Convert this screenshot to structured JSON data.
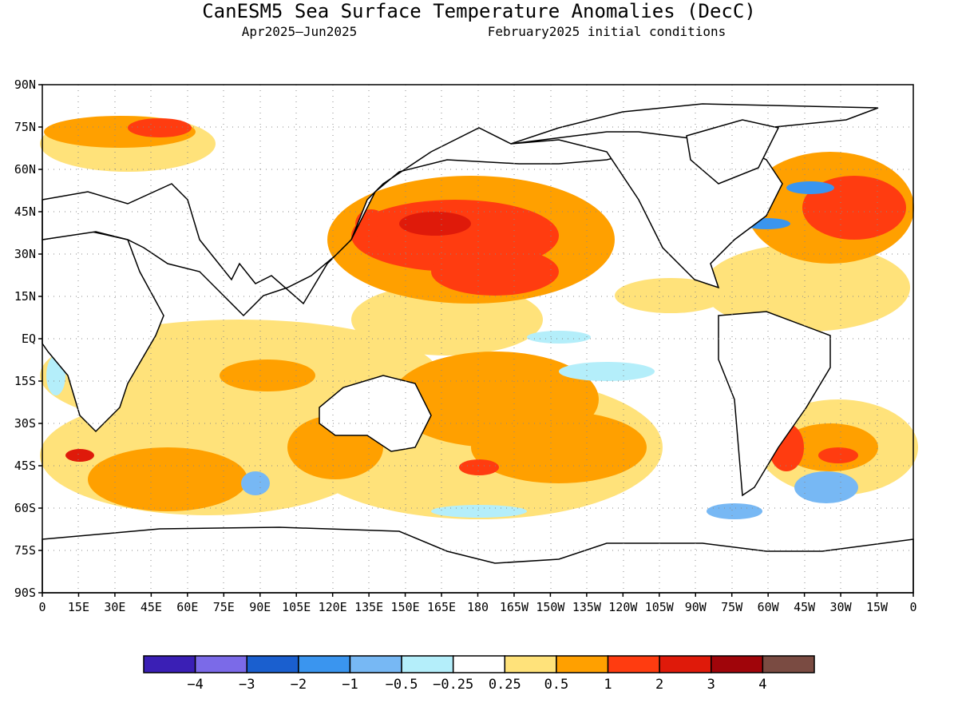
{
  "title": "CanESM5 Sea Surface Temperature Anomalies (DecC)",
  "period": "Apr2025–Jun2025",
  "init": "February2025 initial conditions",
  "lat_labels": [
    "90N",
    "75N",
    "60N",
    "45N",
    "30N",
    "15N",
    "EQ",
    "15S",
    "30S",
    "45S",
    "60S",
    "75S",
    "90S"
  ],
  "lon_labels": [
    "0",
    "15E",
    "30E",
    "45E",
    "60E",
    "75E",
    "90E",
    "105E",
    "120E",
    "135E",
    "150E",
    "165E",
    "180",
    "165W",
    "150W",
    "135W",
    "120W",
    "105W",
    "90W",
    "75W",
    "60W",
    "45W",
    "30W",
    "15W",
    "0"
  ],
  "colorbar": {
    "colors": [
      "#3a1fb5",
      "#7b6ae8",
      "#1a5fcf",
      "#3a95ef",
      "#77b8f4",
      "#b4eefa",
      "#ffffff",
      "#ffe27a",
      "#ffa000",
      "#ff3c10",
      "#df1a0a",
      "#a0050a",
      "#7a4b42"
    ],
    "labels": [
      "−4",
      "−3",
      "−2",
      "−1",
      "−0.5",
      "−0.25",
      "0.25",
      "0.5",
      "1",
      "2",
      "3",
      "4"
    ]
  },
  "chart_data": {
    "type": "heatmap",
    "title": "CanESM5 Sea Surface Temperature Anomalies (DecC)",
    "subtitle": "Apr2025–Jun2025    February2025 initial conditions",
    "x_range": [
      "0",
      "0"
    ],
    "y_range": [
      "90S",
      "90N"
    ],
    "color_levels": [
      -4,
      -3,
      -2,
      -1,
      -0.5,
      -0.25,
      0.25,
      0.5,
      1,
      2,
      3,
      4
    ],
    "grid": true
  }
}
